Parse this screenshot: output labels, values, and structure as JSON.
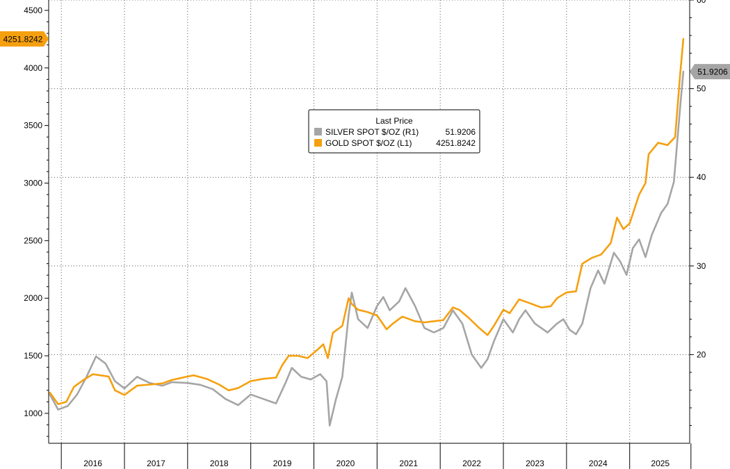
{
  "chart_data": {
    "type": "line",
    "title": "",
    "legend": {
      "title": "Last Price",
      "placement": "top-center",
      "entries": [
        {
          "label": "SILVER SPOT $/OZ  (R1)",
          "value": "51.9206",
          "color": "#a5a5a5"
        },
        {
          "label": "GOLD SPOT $/OZ  (L1)",
          "value": "4251.8242",
          "color": "#f5a00f"
        }
      ]
    },
    "x_axis": {
      "range": [
        2015.8,
        2025.95
      ],
      "years": [
        "2016",
        "2017",
        "2018",
        "2019",
        "2020",
        "2021",
        "2022",
        "2023",
        "2024",
        "2025"
      ],
      "year_starts": [
        2016,
        2017,
        2018,
        2019,
        2020,
        2021,
        2022,
        2023,
        2024,
        2025
      ]
    },
    "y_left": {
      "range": [
        740,
        4590
      ],
      "ticks": [
        1000,
        1500,
        2000,
        2500,
        3000,
        3500,
        4000,
        4500
      ],
      "tick_labels": [
        "1000",
        "1500",
        "2000",
        "2500",
        "3000",
        "3500",
        "4000",
        "4500"
      ],
      "last_value_label": "4251.8242",
      "last_value": 4251.8242
    },
    "y_right": {
      "range": [
        10,
        60
      ],
      "ticks": [
        20,
        30,
        40,
        50,
        60
      ],
      "tick_labels": [
        "20",
        "30",
        "40",
        "50",
        "60"
      ],
      "last_value_label": "51.9206",
      "last_value": 51.9206
    },
    "grid": true,
    "series": [
      {
        "name": "GOLD SPOT $/OZ  (L1)",
        "axis": "left",
        "color": "#f5a00f",
        "x": [
          2015.82,
          2015.95,
          2016.08,
          2016.2,
          2016.35,
          2016.5,
          2016.62,
          2016.75,
          2016.85,
          2017.0,
          2017.2,
          2017.4,
          2017.6,
          2017.75,
          2018.0,
          2018.1,
          2018.3,
          2018.5,
          2018.65,
          2018.8,
          2019.0,
          2019.2,
          2019.4,
          2019.5,
          2019.6,
          2019.75,
          2019.9,
          2020.05,
          2020.15,
          2020.22,
          2020.3,
          2020.45,
          2020.55,
          2020.6,
          2020.7,
          2020.85,
          2021.0,
          2021.15,
          2021.25,
          2021.4,
          2021.6,
          2021.75,
          2021.9,
          2022.05,
          2022.2,
          2022.3,
          2022.45,
          2022.6,
          2022.75,
          2022.85,
          2023.0,
          2023.1,
          2023.25,
          2023.4,
          2023.6,
          2023.75,
          2023.85,
          2024.0,
          2024.15,
          2024.25,
          2024.4,
          2024.55,
          2024.7,
          2024.8,
          2024.9,
          2025.0,
          2025.15,
          2025.25,
          2025.3,
          2025.45,
          2025.6,
          2025.72,
          2025.8,
          2025.85
        ],
        "values": [
          1180,
          1080,
          1100,
          1230,
          1290,
          1340,
          1330,
          1320,
          1200,
          1160,
          1240,
          1250,
          1260,
          1290,
          1320,
          1330,
          1300,
          1250,
          1200,
          1220,
          1280,
          1300,
          1310,
          1420,
          1500,
          1500,
          1480,
          1550,
          1600,
          1480,
          1700,
          1760,
          2000,
          1950,
          1900,
          1880,
          1850,
          1730,
          1780,
          1840,
          1800,
          1790,
          1800,
          1810,
          1920,
          1900,
          1830,
          1750,
          1680,
          1760,
          1900,
          1870,
          1990,
          1960,
          1920,
          1930,
          2000,
          2050,
          2060,
          2300,
          2350,
          2380,
          2480,
          2700,
          2600,
          2650,
          2900,
          3000,
          3250,
          3350,
          3330,
          3400,
          3950,
          4251.8242
        ]
      },
      {
        "name": "SILVER SPOT $/OZ  (R1)",
        "axis": "right",
        "color": "#a5a5a5",
        "x": [
          2015.82,
          2015.95,
          2016.1,
          2016.25,
          2016.4,
          2016.55,
          2016.7,
          2016.85,
          2017.0,
          2017.2,
          2017.4,
          2017.6,
          2017.75,
          2018.0,
          2018.2,
          2018.4,
          2018.6,
          2018.8,
          2019.0,
          2019.2,
          2019.4,
          2019.55,
          2019.65,
          2019.8,
          2019.95,
          2020.1,
          2020.2,
          2020.25,
          2020.35,
          2020.45,
          2020.55,
          2020.6,
          2020.7,
          2020.85,
          2021.0,
          2021.1,
          2021.2,
          2021.35,
          2021.45,
          2021.6,
          2021.75,
          2021.9,
          2022.05,
          2022.2,
          2022.35,
          2022.5,
          2022.65,
          2022.75,
          2022.85,
          2023.0,
          2023.15,
          2023.25,
          2023.35,
          2023.5,
          2023.7,
          2023.85,
          2023.95,
          2024.05,
          2024.15,
          2024.25,
          2024.38,
          2024.5,
          2024.6,
          2024.75,
          2024.85,
          2024.95,
          2025.05,
          2025.15,
          2025.25,
          2025.35,
          2025.5,
          2025.6,
          2025.7,
          2025.8,
          2025.85
        ],
        "values": [
          15.5,
          13.8,
          14.2,
          15.5,
          17.5,
          19.8,
          19.0,
          17.0,
          16.2,
          17.5,
          16.8,
          16.5,
          16.9,
          16.8,
          16.6,
          16.1,
          15.0,
          14.3,
          15.5,
          15.0,
          14.5,
          16.8,
          18.5,
          17.5,
          17.2,
          17.8,
          17.0,
          12.0,
          15.0,
          17.5,
          24.5,
          27.0,
          24.0,
          23.0,
          25.5,
          26.5,
          25.0,
          26.0,
          27.5,
          25.5,
          23.0,
          22.5,
          23.0,
          25.0,
          23.5,
          20.0,
          18.5,
          19.5,
          21.5,
          24.0,
          22.5,
          24.0,
          25.0,
          23.5,
          22.5,
          23.5,
          24.0,
          22.8,
          22.3,
          23.5,
          27.5,
          29.5,
          28.0,
          31.5,
          30.5,
          29.0,
          32.0,
          33.0,
          31.0,
          33.5,
          36.0,
          37.0,
          39.5,
          48.0,
          51.9206
        ]
      }
    ]
  }
}
